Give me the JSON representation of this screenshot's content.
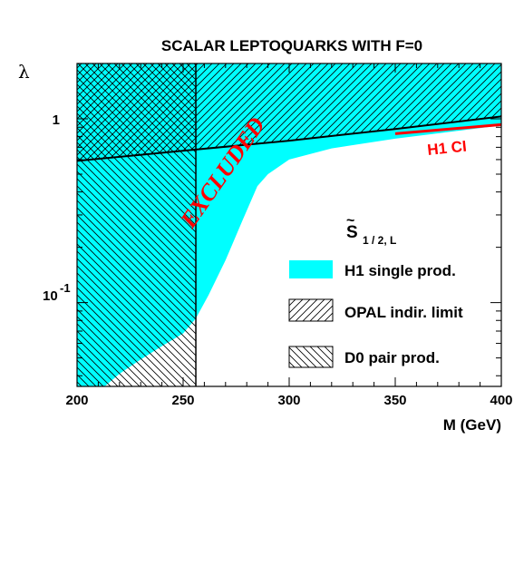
{
  "chart_data": {
    "type": "area",
    "title": "SCALAR LEPTOQUARKS WITH F=0",
    "xlabel": "M (GeV)",
    "ylabel": "λ",
    "xlim": [
      200,
      400
    ],
    "ylim": [
      0.035,
      2.0
    ],
    "y_scale": "log",
    "x_ticks": [
      "200",
      "250",
      "300",
      "350",
      "400"
    ],
    "y_ticks": [
      {
        "value": 1,
        "label": "1"
      },
      {
        "value": 0.1,
        "base": "10",
        "exp": "-1"
      }
    ],
    "legend_title": {
      "symbol": "S",
      "accent": "~",
      "sub": "1 / 2, L"
    },
    "annotation": "EXCLUDED",
    "series": [
      {
        "name": "H1 single prod.",
        "style": "fill",
        "color": "#00ffff",
        "x": [
          200,
          213,
          220,
          230,
          240,
          250,
          256,
          262,
          270,
          278,
          285,
          290,
          300,
          320,
          350,
          400
        ],
        "y": [
          0.035,
          0.035,
          0.041,
          0.049,
          0.058,
          0.068,
          0.082,
          0.11,
          0.17,
          0.28,
          0.43,
          0.5,
          0.6,
          0.69,
          0.78,
          0.92
        ]
      },
      {
        "name": "OPAL indir. limit",
        "style": "hatch-diagonal",
        "x": [
          200,
          256,
          300,
          350,
          400
        ],
        "y": [
          0.59,
          0.68,
          0.76,
          0.88,
          1.03
        ]
      },
      {
        "name": "D0 pair prod.",
        "style": "hatch-crossed",
        "x_limit": 256
      },
      {
        "name": "H1 CI",
        "style": "line",
        "color": "#ff0000",
        "x": [
          350,
          400
        ],
        "y": [
          0.83,
          0.93
        ]
      }
    ]
  }
}
